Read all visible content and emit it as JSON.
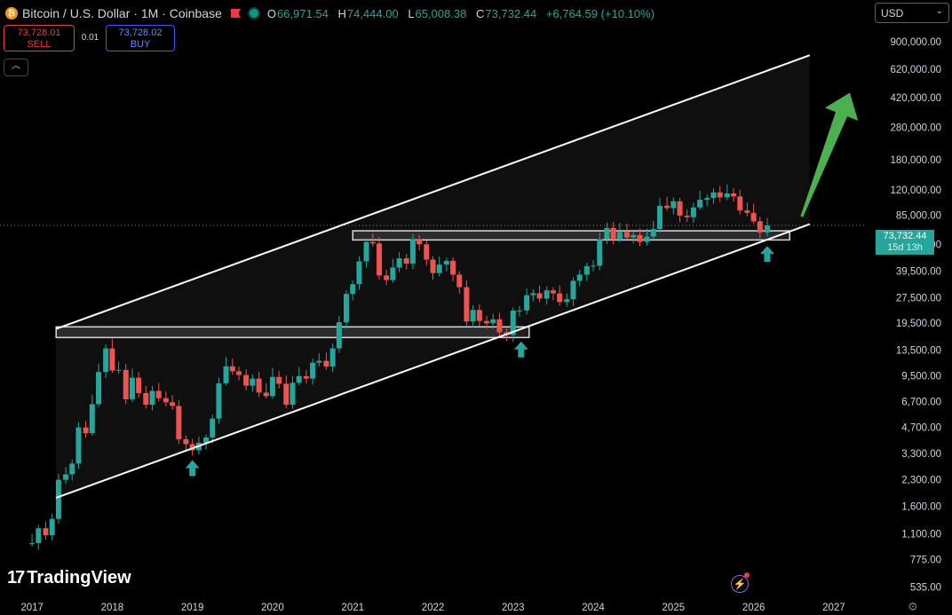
{
  "header": {
    "symbol_title": "Bitcoin / U.S. Dollar · 1M · Coinbase",
    "ohlc": [
      {
        "key": "O",
        "value": "66,971.54"
      },
      {
        "key": "H",
        "value": "74,444.00"
      },
      {
        "key": "L",
        "value": "65,008.38"
      },
      {
        "key": "C",
        "value": "73,732.44"
      }
    ],
    "change": "+6,764.59 (+10.10%)"
  },
  "trade": {
    "sell_price": "73,728.01",
    "sell_label": "SELL",
    "spread": "0.01",
    "buy_price": "73,728.02",
    "buy_label": "BUY"
  },
  "currency_select": "USD",
  "current_price": {
    "price": "73,732.44",
    "countdown": "15d 13h"
  },
  "branding": {
    "name": "TradingView",
    "logo_mark": "17"
  },
  "icons": {
    "flash": "lightning-icon",
    "settings": "gear-icon",
    "collapse": "chevron-up-icon"
  },
  "colors": {
    "up": "#26a69a",
    "down": "#ef5350",
    "background": "#000000",
    "channel": "#ffffff",
    "arrow_up": "#4caf50"
  },
  "chart_data": {
    "type": "candlestick",
    "timeframe": "1M",
    "scale": "log",
    "grid": false,
    "x_ticks": [
      "2017",
      "2018",
      "2019",
      "2020",
      "2021",
      "2022",
      "2023",
      "2024",
      "2025",
      "2026",
      "2027"
    ],
    "y_ticks": [
      "900,000.00",
      "620,000.00",
      "420,000.00",
      "280,000.00",
      "180,000.00",
      "120,000.00",
      "85,000.00",
      "57,000.00",
      "39,500.00",
      "27,500.00",
      "19,500.00",
      "13,500.00",
      "9,500.00",
      "6,700.00",
      "4,700.00",
      "3,300.00",
      "2,300.00",
      "1,600.00",
      "1,100.00",
      "775.00",
      "535.00"
    ],
    "y_range": [
      470,
      1250000
    ],
    "x_range": [
      2016.6,
      2027.4
    ],
    "closes": [
      [
        2016.92,
        960
      ],
      [
        2017.0,
        970
      ],
      [
        2017.08,
        1190
      ],
      [
        2017.17,
        1080
      ],
      [
        2017.25,
        1350
      ],
      [
        2017.33,
        2300
      ],
      [
        2017.42,
        2480
      ],
      [
        2017.5,
        2870
      ],
      [
        2017.58,
        4700
      ],
      [
        2017.67,
        4340
      ],
      [
        2017.75,
        6450
      ],
      [
        2017.83,
        10000
      ],
      [
        2017.92,
        13800
      ],
      [
        2018.0,
        10200
      ],
      [
        2018.08,
        10300
      ],
      [
        2018.17,
        6900
      ],
      [
        2018.25,
        9250
      ],
      [
        2018.33,
        7500
      ],
      [
        2018.42,
        6400
      ],
      [
        2018.5,
        7730
      ],
      [
        2018.58,
        7000
      ],
      [
        2018.67,
        6620
      ],
      [
        2018.75,
        6300
      ],
      [
        2018.83,
        4000
      ],
      [
        2018.92,
        3740
      ],
      [
        2019.0,
        3440
      ],
      [
        2019.08,
        3810
      ],
      [
        2019.17,
        4100
      ],
      [
        2019.25,
        5300
      ],
      [
        2019.33,
        8570
      ],
      [
        2019.42,
        10800
      ],
      [
        2019.5,
        10100
      ],
      [
        2019.58,
        9600
      ],
      [
        2019.67,
        8300
      ],
      [
        2019.75,
        9150
      ],
      [
        2019.83,
        7550
      ],
      [
        2019.92,
        7200
      ],
      [
        2020.0,
        9350
      ],
      [
        2020.08,
        8520
      ],
      [
        2020.17,
        6400
      ],
      [
        2020.25,
        8630
      ],
      [
        2020.33,
        9450
      ],
      [
        2020.42,
        9140
      ],
      [
        2020.5,
        11350
      ],
      [
        2020.58,
        11650
      ],
      [
        2020.67,
        10780
      ],
      [
        2020.75,
        13800
      ],
      [
        2020.83,
        19700
      ],
      [
        2020.92,
        28990
      ],
      [
        2021.0,
        33100
      ],
      [
        2021.08,
        45200
      ],
      [
        2021.17,
        58800
      ],
      [
        2021.25,
        57700
      ],
      [
        2021.33,
        37300
      ],
      [
        2021.42,
        35000
      ],
      [
        2021.5,
        41500
      ],
      [
        2021.58,
        47100
      ],
      [
        2021.67,
        43800
      ],
      [
        2021.75,
        61300
      ],
      [
        2021.83,
        57000
      ],
      [
        2021.92,
        46300
      ],
      [
        2022.0,
        38500
      ],
      [
        2022.08,
        43200
      ],
      [
        2022.17,
        45500
      ],
      [
        2022.25,
        37700
      ],
      [
        2022.33,
        31800
      ],
      [
        2022.42,
        19900
      ],
      [
        2022.5,
        23300
      ],
      [
        2022.58,
        20050
      ],
      [
        2022.67,
        19400
      ],
      [
        2022.75,
        20500
      ],
      [
        2022.83,
        17200
      ],
      [
        2022.92,
        16550
      ],
      [
        2023.0,
        23100
      ],
      [
        2023.08,
        23150
      ],
      [
        2023.17,
        28500
      ],
      [
        2023.25,
        29250
      ],
      [
        2023.33,
        27200
      ],
      [
        2023.42,
        30450
      ],
      [
        2023.5,
        29200
      ],
      [
        2023.58,
        25950
      ],
      [
        2023.67,
        26950
      ],
      [
        2023.75,
        34650
      ],
      [
        2023.83,
        37700
      ],
      [
        2023.92,
        42300
      ],
      [
        2024.0,
        42600
      ],
      [
        2024.08,
        61200
      ],
      [
        2024.17,
        71300
      ],
      [
        2024.25,
        60600
      ],
      [
        2024.33,
        67500
      ],
      [
        2024.42,
        62700
      ],
      [
        2024.5,
        64600
      ],
      [
        2024.58,
        58900
      ],
      [
        2024.67,
        63300
      ],
      [
        2024.75,
        70200
      ],
      [
        2024.83,
        96400
      ],
      [
        2024.92,
        93400
      ],
      [
        2025.0,
        102400
      ],
      [
        2025.08,
        84300
      ],
      [
        2025.17,
        82500
      ],
      [
        2025.25,
        94200
      ],
      [
        2025.33,
        104600
      ],
      [
        2025.42,
        107100
      ],
      [
        2025.5,
        115700
      ],
      [
        2025.58,
        108200
      ],
      [
        2025.67,
        114000
      ],
      [
        2025.75,
        109500
      ],
      [
        2025.83,
        90400
      ],
      [
        2025.92,
        87500
      ],
      [
        2026.0,
        78000
      ],
      [
        2026.08,
        66970
      ],
      [
        2026.17,
        73732.44
      ]
    ],
    "annotations": [
      {
        "type": "channel",
        "upper": [
          [
            2017.3,
            18000
          ],
          [
            2026.7,
            750000
          ]
        ],
        "lower": [
          [
            2017.3,
            1800
          ],
          [
            2026.7,
            75000
          ]
        ]
      },
      {
        "type": "zone",
        "x": [
          2017.3,
          2023.2
        ],
        "y": [
          16000,
          18500
        ]
      },
      {
        "type": "zone",
        "x": [
          2021.0,
          2026.45
        ],
        "y": [
          60500,
          68500
        ]
      },
      {
        "type": "arrow_up",
        "at": [
          2019.0,
          2700
        ]
      },
      {
        "type": "arrow_up",
        "at": [
          2023.1,
          13600
        ]
      },
      {
        "type": "arrow_up",
        "at": [
          2026.17,
          50000
        ]
      },
      {
        "type": "big_arrow",
        "from": [
          2026.6,
          83000
        ],
        "to": [
          2027.2,
          450000
        ]
      }
    ]
  }
}
